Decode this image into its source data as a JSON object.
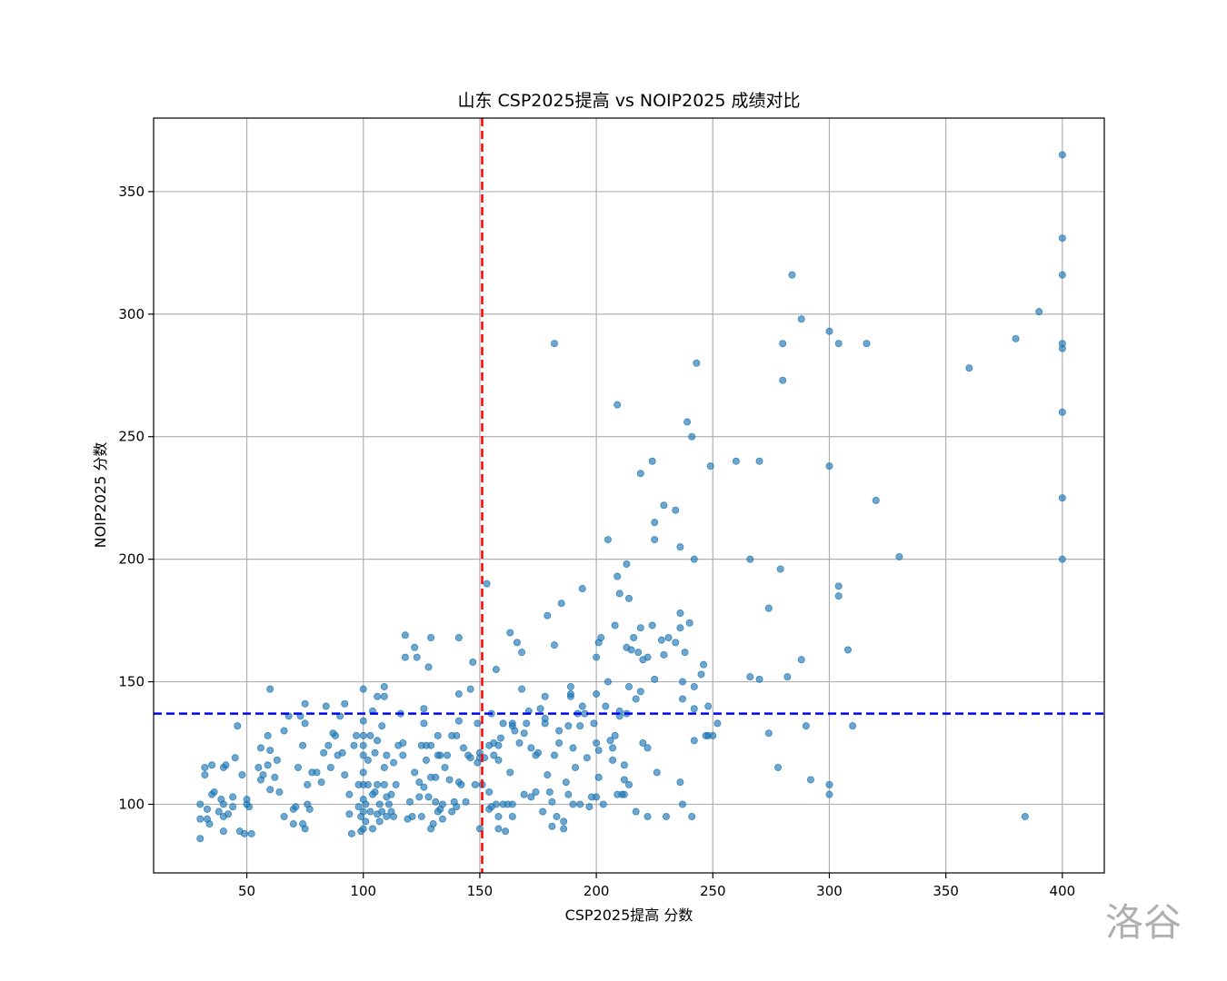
{
  "chart_data": {
    "type": "scatter",
    "title": "山东 CSP2025提高 vs NOIP2025 成绩对比",
    "xlabel": "CSP2025提高 分数",
    "ylabel": "NOIP2025 分数",
    "xlim": [
      10,
      418
    ],
    "ylim": [
      72,
      380
    ],
    "xticks": [
      50,
      100,
      150,
      200,
      250,
      300,
      350,
      400
    ],
    "yticks": [
      100,
      150,
      200,
      250,
      300,
      350
    ],
    "grid": true,
    "point_color": "#1f77b4",
    "vline": {
      "x": 151,
      "color": "#ff0000"
    },
    "hline": {
      "y": 137,
      "color": "#0000ff"
    },
    "watermark": "洛谷",
    "points": [
      [
        30,
        100
      ],
      [
        30,
        94
      ],
      [
        30,
        86
      ],
      [
        32,
        115
      ],
      [
        32,
        112
      ],
      [
        33,
        98
      ],
      [
        33,
        94
      ],
      [
        34,
        92
      ],
      [
        35,
        104
      ],
      [
        35,
        116
      ],
      [
        36,
        105
      ],
      [
        38,
        97
      ],
      [
        39,
        102
      ],
      [
        40,
        89
      ],
      [
        40,
        95
      ],
      [
        40,
        100
      ],
      [
        40,
        115
      ],
      [
        41,
        116
      ],
      [
        42,
        96
      ],
      [
        44,
        99
      ],
      [
        44,
        103
      ],
      [
        45,
        119
      ],
      [
        46,
        132
      ],
      [
        47,
        89
      ],
      [
        48,
        112
      ],
      [
        49,
        88
      ],
      [
        50,
        100
      ],
      [
        50,
        102
      ],
      [
        51,
        99
      ],
      [
        52,
        88
      ],
      [
        55,
        115
      ],
      [
        56,
        110
      ],
      [
        56,
        123
      ],
      [
        57,
        112
      ],
      [
        59,
        128
      ],
      [
        59,
        116
      ],
      [
        60,
        106
      ],
      [
        60,
        147
      ],
      [
        60,
        122
      ],
      [
        62,
        111
      ],
      [
        63,
        118
      ],
      [
        64,
        105
      ],
      [
        66,
        95
      ],
      [
        66,
        130
      ],
      [
        68,
        136
      ],
      [
        70,
        98
      ],
      [
        70,
        92
      ],
      [
        71,
        99
      ],
      [
        72,
        115
      ],
      [
        73,
        136
      ],
      [
        74,
        124
      ],
      [
        74,
        92
      ],
      [
        75,
        90
      ],
      [
        75,
        133
      ],
      [
        75,
        141
      ],
      [
        76,
        100
      ],
      [
        76,
        108
      ],
      [
        77,
        98
      ],
      [
        78,
        113
      ],
      [
        80,
        113
      ],
      [
        82,
        109
      ],
      [
        83,
        121
      ],
      [
        84,
        140
      ],
      [
        85,
        124
      ],
      [
        86,
        115
      ],
      [
        87,
        129
      ],
      [
        88,
        128
      ],
      [
        89,
        120
      ],
      [
        90,
        136
      ],
      [
        91,
        121
      ],
      [
        92,
        112
      ],
      [
        92,
        141
      ],
      [
        94,
        104
      ],
      [
        94,
        96
      ],
      [
        95,
        88
      ],
      [
        96,
        124
      ],
      [
        97,
        128
      ],
      [
        98,
        108
      ],
      [
        98,
        99
      ],
      [
        99,
        89
      ],
      [
        99,
        95
      ],
      [
        100,
        90
      ],
      [
        100,
        97
      ],
      [
        100,
        102
      ],
      [
        100,
        108
      ],
      [
        100,
        113
      ],
      [
        100,
        120
      ],
      [
        100,
        124
      ],
      [
        100,
        128
      ],
      [
        100,
        134
      ],
      [
        100,
        147
      ],
      [
        101,
        93
      ],
      [
        101,
        100
      ],
      [
        102,
        108
      ],
      [
        102,
        118
      ],
      [
        103,
        128
      ],
      [
        103,
        97
      ],
      [
        104,
        104
      ],
      [
        104,
        90
      ],
      [
        104,
        138
      ],
      [
        105,
        105
      ],
      [
        105,
        121
      ],
      [
        106,
        126
      ],
      [
        106,
        96
      ],
      [
        106,
        108
      ],
      [
        106,
        144
      ],
      [
        107,
        100
      ],
      [
        107,
        93
      ],
      [
        108,
        132
      ],
      [
        108,
        97
      ],
      [
        109,
        108
      ],
      [
        109,
        115
      ],
      [
        109,
        144
      ],
      [
        109,
        148
      ],
      [
        110,
        103
      ],
      [
        110,
        95
      ],
      [
        110,
        120
      ],
      [
        111,
        100
      ],
      [
        112,
        97
      ],
      [
        112,
        104
      ],
      [
        113,
        117
      ],
      [
        113,
        95
      ],
      [
        114,
        108
      ],
      [
        115,
        124
      ],
      [
        116,
        137
      ],
      [
        117,
        120
      ],
      [
        117,
        125
      ],
      [
        118,
        160
      ],
      [
        118,
        169
      ],
      [
        119,
        94
      ],
      [
        120,
        101
      ],
      [
        121,
        95
      ],
      [
        122,
        113
      ],
      [
        122,
        164
      ],
      [
        123,
        160
      ],
      [
        124,
        109
      ],
      [
        124,
        103
      ],
      [
        125,
        95
      ],
      [
        125,
        124
      ],
      [
        126,
        107
      ],
      [
        126,
        133
      ],
      [
        126,
        139
      ],
      [
        127,
        124
      ],
      [
        127,
        118
      ],
      [
        128,
        103
      ],
      [
        128,
        156
      ],
      [
        129,
        111
      ],
      [
        129,
        90
      ],
      [
        129,
        124
      ],
      [
        129,
        168
      ],
      [
        130,
        92
      ],
      [
        131,
        111
      ],
      [
        131,
        101
      ],
      [
        132,
        97
      ],
      [
        132,
        128
      ],
      [
        132,
        120
      ],
      [
        133,
        120
      ],
      [
        133,
        98
      ],
      [
        134,
        100
      ],
      [
        134,
        94
      ],
      [
        135,
        115
      ],
      [
        136,
        120
      ],
      [
        137,
        110
      ],
      [
        138,
        97
      ],
      [
        138,
        128
      ],
      [
        139,
        101
      ],
      [
        140,
        99
      ],
      [
        140,
        128
      ],
      [
        141,
        109
      ],
      [
        141,
        134
      ],
      [
        141,
        145
      ],
      [
        141,
        168
      ],
      [
        142,
        108
      ],
      [
        143,
        123
      ],
      [
        144,
        101
      ],
      [
        145,
        120
      ],
      [
        146,
        119
      ],
      [
        146,
        147
      ],
      [
        147,
        158
      ],
      [
        148,
        108
      ],
      [
        149,
        133
      ],
      [
        149,
        117
      ],
      [
        150,
        90
      ],
      [
        150,
        119
      ],
      [
        150,
        121
      ],
      [
        151,
        108
      ],
      [
        152,
        119
      ],
      [
        153,
        190
      ],
      [
        154,
        124
      ],
      [
        154,
        98
      ],
      [
        154,
        105
      ],
      [
        155,
        99
      ],
      [
        155,
        137
      ],
      [
        156,
        125
      ],
      [
        156,
        120
      ],
      [
        157,
        100
      ],
      [
        157,
        155
      ],
      [
        158,
        118
      ],
      [
        158,
        90
      ],
      [
        158,
        95
      ],
      [
        158,
        124
      ],
      [
        159,
        127
      ],
      [
        160,
        100
      ],
      [
        160,
        133
      ],
      [
        161,
        89
      ],
      [
        162,
        100
      ],
      [
        163,
        113
      ],
      [
        163,
        170
      ],
      [
        164,
        95
      ],
      [
        164,
        132
      ],
      [
        164,
        100
      ],
      [
        164,
        133
      ],
      [
        165,
        130
      ],
      [
        166,
        166
      ],
      [
        167,
        125
      ],
      [
        168,
        162
      ],
      [
        168,
        147
      ],
      [
        169,
        104
      ],
      [
        169,
        129
      ],
      [
        170,
        133
      ],
      [
        171,
        138
      ],
      [
        172,
        123
      ],
      [
        172,
        103
      ],
      [
        174,
        105
      ],
      [
        174,
        120
      ],
      [
        175,
        121
      ],
      [
        176,
        139
      ],
      [
        177,
        97
      ],
      [
        178,
        135
      ],
      [
        178,
        133
      ],
      [
        178,
        144
      ],
      [
        179,
        112
      ],
      [
        179,
        177
      ],
      [
        180,
        105
      ],
      [
        181,
        101
      ],
      [
        181,
        91
      ],
      [
        182,
        288
      ],
      [
        182,
        165
      ],
      [
        182,
        120
      ],
      [
        183,
        95
      ],
      [
        184,
        130
      ],
      [
        184,
        125
      ],
      [
        185,
        182
      ],
      [
        186,
        93
      ],
      [
        186,
        90
      ],
      [
        187,
        109
      ],
      [
        188,
        104
      ],
      [
        188,
        132
      ],
      [
        189,
        148
      ],
      [
        189,
        145
      ],
      [
        189,
        144
      ],
      [
        190,
        123
      ],
      [
        190,
        100
      ],
      [
        191,
        115
      ],
      [
        192,
        137
      ],
      [
        193,
        132
      ],
      [
        193,
        100
      ],
      [
        194,
        188
      ],
      [
        194,
        140
      ],
      [
        195,
        137
      ],
      [
        196,
        119
      ],
      [
        197,
        99
      ],
      [
        198,
        103
      ],
      [
        199,
        133
      ],
      [
        200,
        145
      ],
      [
        200,
        160
      ],
      [
        200,
        103
      ],
      [
        200,
        125
      ],
      [
        201,
        111
      ],
      [
        201,
        122
      ],
      [
        201,
        166
      ],
      [
        202,
        168
      ],
      [
        203,
        100
      ],
      [
        204,
        140
      ],
      [
        205,
        150
      ],
      [
        205,
        208
      ],
      [
        206,
        126
      ],
      [
        207,
        118
      ],
      [
        207,
        123
      ],
      [
        208,
        173
      ],
      [
        208,
        128
      ],
      [
        209,
        263
      ],
      [
        209,
        104
      ],
      [
        209,
        193
      ],
      [
        210,
        136
      ],
      [
        210,
        186
      ],
      [
        210,
        138
      ],
      [
        211,
        104
      ],
      [
        212,
        104
      ],
      [
        212,
        116
      ],
      [
        212,
        110
      ],
      [
        213,
        198
      ],
      [
        213,
        137
      ],
      [
        213,
        164
      ],
      [
        214,
        108
      ],
      [
        214,
        148
      ],
      [
        214,
        184
      ],
      [
        215,
        163
      ],
      [
        216,
        168
      ],
      [
        217,
        143
      ],
      [
        217,
        97
      ],
      [
        218,
        162
      ],
      [
        219,
        146
      ],
      [
        219,
        235
      ],
      [
        219,
        172
      ],
      [
        220,
        159
      ],
      [
        220,
        125
      ],
      [
        222,
        95
      ],
      [
        222,
        160
      ],
      [
        222,
        123
      ],
      [
        224,
        173
      ],
      [
        224,
        240
      ],
      [
        225,
        151
      ],
      [
        225,
        208
      ],
      [
        225,
        215
      ],
      [
        226,
        113
      ],
      [
        228,
        167
      ],
      [
        229,
        222
      ],
      [
        229,
        161
      ],
      [
        230,
        95
      ],
      [
        231,
        168
      ],
      [
        234,
        220
      ],
      [
        234,
        166
      ],
      [
        236,
        178
      ],
      [
        236,
        205
      ],
      [
        236,
        172
      ],
      [
        236,
        109
      ],
      [
        237,
        150
      ],
      [
        237,
        143
      ],
      [
        237,
        100
      ],
      [
        238,
        162
      ],
      [
        239,
        256
      ],
      [
        240,
        174
      ],
      [
        241,
        250
      ],
      [
        241,
        95
      ],
      [
        242,
        200
      ],
      [
        242,
        139
      ],
      [
        242,
        126
      ],
      [
        242,
        148
      ],
      [
        243,
        280
      ],
      [
        245,
        153
      ],
      [
        246,
        157
      ],
      [
        247,
        128
      ],
      [
        248,
        140
      ],
      [
        248,
        128
      ],
      [
        249,
        238
      ],
      [
        250,
        128
      ],
      [
        252,
        133
      ],
      [
        260,
        240
      ],
      [
        266,
        152
      ],
      [
        266,
        200
      ],
      [
        270,
        240
      ],
      [
        270,
        151
      ],
      [
        274,
        180
      ],
      [
        274,
        129
      ],
      [
        278,
        115
      ],
      [
        279,
        196
      ],
      [
        280,
        288
      ],
      [
        280,
        273
      ],
      [
        282,
        152
      ],
      [
        284,
        316
      ],
      [
        288,
        159
      ],
      [
        288,
        298
      ],
      [
        290,
        132
      ],
      [
        292,
        110
      ],
      [
        300,
        293
      ],
      [
        300,
        238
      ],
      [
        300,
        104
      ],
      [
        300,
        108
      ],
      [
        304,
        189
      ],
      [
        304,
        288
      ],
      [
        304,
        185
      ],
      [
        308,
        163
      ],
      [
        310,
        132
      ],
      [
        316,
        288
      ],
      [
        320,
        224
      ],
      [
        330,
        201
      ],
      [
        360,
        278
      ],
      [
        380,
        290
      ],
      [
        384,
        95
      ],
      [
        390,
        301
      ],
      [
        400,
        365
      ],
      [
        400,
        331
      ],
      [
        400,
        316
      ],
      [
        400,
        288
      ],
      [
        400,
        286
      ],
      [
        400,
        260
      ],
      [
        400,
        225
      ],
      [
        400,
        200
      ]
    ]
  }
}
